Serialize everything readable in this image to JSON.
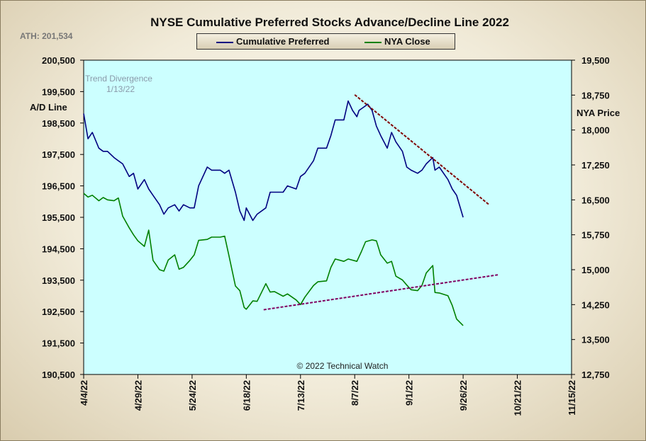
{
  "chart_data": {
    "type": "line",
    "title": "NYSE Cumulative  Preferred Stocks Advance/Decline  Line 2022",
    "ath_note": "ATH: 201,534",
    "left_axis_label": "A/D Line",
    "right_axis_label": "NYA Price",
    "watermark": "© 2022 Technical Watch",
    "annotation": {
      "line1": "Trend  Divergence",
      "line2": "1/13/22"
    },
    "xlim": [
      "2022-04-04",
      "2022-11-15"
    ],
    "x_ticks": [
      "4/4/22",
      "4/29/22",
      "5/24/22",
      "6/18/22",
      "7/13/22",
      "8/7/22",
      "9/1/22",
      "9/26/22",
      "10/21/22",
      "11/15/22"
    ],
    "left_ylim": [
      190500,
      200500
    ],
    "left_ticks": [
      "190,500",
      "191,500",
      "192,500",
      "193,500",
      "194,500",
      "195,500",
      "196,500",
      "197,500",
      "198,500",
      "199,500",
      "200,500"
    ],
    "right_ylim": [
      12750,
      19500
    ],
    "right_ticks": [
      "12,750",
      "13,500",
      "14,250",
      "15,000",
      "15,750",
      "16,500",
      "17,250",
      "18,000",
      "18,750",
      "19,500"
    ],
    "colors": {
      "plot_bg": "#ccffff",
      "ad_line": "#000080",
      "nya_line": "#008000",
      "trend_upper": "#800000",
      "trend_lower": "#800060"
    },
    "series": [
      {
        "name": "Cumulative Preferred",
        "axis": "left",
        "color": "#000080",
        "points": [
          [
            "2022-04-04",
            198800
          ],
          [
            "2022-04-06",
            198000
          ],
          [
            "2022-04-08",
            198200
          ],
          [
            "2022-04-11",
            197700
          ],
          [
            "2022-04-13",
            197600
          ],
          [
            "2022-04-15",
            197600
          ],
          [
            "2022-04-18",
            197400
          ],
          [
            "2022-04-20",
            197300
          ],
          [
            "2022-04-22",
            197200
          ],
          [
            "2022-04-25",
            196800
          ],
          [
            "2022-04-27",
            196900
          ],
          [
            "2022-04-29",
            196400
          ],
          [
            "2022-05-02",
            196700
          ],
          [
            "2022-05-04",
            196400
          ],
          [
            "2022-05-06",
            196200
          ],
          [
            "2022-05-09",
            195900
          ],
          [
            "2022-05-11",
            195600
          ],
          [
            "2022-05-13",
            195800
          ],
          [
            "2022-05-16",
            195900
          ],
          [
            "2022-05-18",
            195700
          ],
          [
            "2022-05-20",
            195900
          ],
          [
            "2022-05-23",
            195800
          ],
          [
            "2022-05-25",
            195800
          ],
          [
            "2022-05-27",
            196500
          ],
          [
            "2022-05-31",
            197100
          ],
          [
            "2022-06-02",
            197000
          ],
          [
            "2022-06-06",
            197000
          ],
          [
            "2022-06-08",
            196900
          ],
          [
            "2022-06-10",
            197000
          ],
          [
            "2022-06-13",
            196300
          ],
          [
            "2022-06-15",
            195700
          ],
          [
            "2022-06-17",
            195400
          ],
          [
            "2022-06-18",
            195800
          ],
          [
            "2022-06-21",
            195400
          ],
          [
            "2022-06-23",
            195600
          ],
          [
            "2022-06-27",
            195800
          ],
          [
            "2022-06-29",
            196300
          ],
          [
            "2022-07-01",
            196300
          ],
          [
            "2022-07-05",
            196300
          ],
          [
            "2022-07-07",
            196500
          ],
          [
            "2022-07-11",
            196400
          ],
          [
            "2022-07-13",
            196800
          ],
          [
            "2022-07-15",
            196900
          ],
          [
            "2022-07-19",
            197300
          ],
          [
            "2022-07-21",
            197700
          ],
          [
            "2022-07-25",
            197700
          ],
          [
            "2022-07-27",
            198100
          ],
          [
            "2022-07-29",
            198600
          ],
          [
            "2022-08-02",
            198600
          ],
          [
            "2022-08-04",
            199200
          ],
          [
            "2022-08-06",
            198900
          ],
          [
            "2022-08-08",
            198700
          ],
          [
            "2022-08-09",
            198900
          ],
          [
            "2022-08-11",
            199000
          ],
          [
            "2022-08-13",
            199100
          ],
          [
            "2022-08-15",
            198900
          ],
          [
            "2022-08-17",
            198400
          ],
          [
            "2022-08-19",
            198100
          ],
          [
            "2022-08-22",
            197700
          ],
          [
            "2022-08-24",
            198200
          ],
          [
            "2022-08-26",
            197900
          ],
          [
            "2022-08-29",
            197600
          ],
          [
            "2022-08-31",
            197100
          ],
          [
            "2022-09-02",
            197000
          ],
          [
            "2022-09-05",
            196900
          ],
          [
            "2022-09-07",
            197000
          ],
          [
            "2022-09-09",
            197200
          ],
          [
            "2022-09-12",
            197400
          ],
          [
            "2022-09-13",
            197000
          ],
          [
            "2022-09-15",
            197100
          ],
          [
            "2022-09-19",
            196700
          ],
          [
            "2022-09-21",
            196400
          ],
          [
            "2022-09-23",
            196200
          ],
          [
            "2022-09-26",
            195500
          ]
        ]
      },
      {
        "name": "NYA Close",
        "axis": "right",
        "color": "#008000",
        "points": [
          [
            "2022-04-04",
            16640
          ],
          [
            "2022-04-06",
            16560
          ],
          [
            "2022-04-08",
            16600
          ],
          [
            "2022-04-11",
            16480
          ],
          [
            "2022-04-13",
            16550
          ],
          [
            "2022-04-15",
            16500
          ],
          [
            "2022-04-18",
            16480
          ],
          [
            "2022-04-20",
            16540
          ],
          [
            "2022-04-22",
            16150
          ],
          [
            "2022-04-25",
            15900
          ],
          [
            "2022-04-27",
            15750
          ],
          [
            "2022-04-29",
            15620
          ],
          [
            "2022-05-02",
            15500
          ],
          [
            "2022-05-04",
            15850
          ],
          [
            "2022-05-06",
            15200
          ],
          [
            "2022-05-09",
            15000
          ],
          [
            "2022-05-11",
            14970
          ],
          [
            "2022-05-13",
            15210
          ],
          [
            "2022-05-16",
            15320
          ],
          [
            "2022-05-18",
            15010
          ],
          [
            "2022-05-20",
            15050
          ],
          [
            "2022-05-23",
            15200
          ],
          [
            "2022-05-25",
            15320
          ],
          [
            "2022-05-27",
            15630
          ],
          [
            "2022-05-31",
            15650
          ],
          [
            "2022-06-02",
            15700
          ],
          [
            "2022-06-06",
            15700
          ],
          [
            "2022-06-08",
            15720
          ],
          [
            "2022-06-10",
            15300
          ],
          [
            "2022-06-13",
            14650
          ],
          [
            "2022-06-15",
            14550
          ],
          [
            "2022-06-17",
            14190
          ],
          [
            "2022-06-18",
            14150
          ],
          [
            "2022-06-21",
            14330
          ],
          [
            "2022-06-23",
            14320
          ],
          [
            "2022-06-27",
            14700
          ],
          [
            "2022-06-29",
            14520
          ],
          [
            "2022-07-01",
            14530
          ],
          [
            "2022-07-05",
            14430
          ],
          [
            "2022-07-07",
            14480
          ],
          [
            "2022-07-11",
            14350
          ],
          [
            "2022-07-13",
            14250
          ],
          [
            "2022-07-15",
            14410
          ],
          [
            "2022-07-19",
            14660
          ],
          [
            "2022-07-21",
            14740
          ],
          [
            "2022-07-25",
            14760
          ],
          [
            "2022-07-27",
            15050
          ],
          [
            "2022-07-29",
            15230
          ],
          [
            "2022-08-02",
            15180
          ],
          [
            "2022-08-04",
            15230
          ],
          [
            "2022-08-08",
            15180
          ],
          [
            "2022-08-10",
            15380
          ],
          [
            "2022-08-12",
            15600
          ],
          [
            "2022-08-15",
            15640
          ],
          [
            "2022-08-17",
            15620
          ],
          [
            "2022-08-19",
            15320
          ],
          [
            "2022-08-22",
            15140
          ],
          [
            "2022-08-24",
            15180
          ],
          [
            "2022-08-26",
            14860
          ],
          [
            "2022-08-29",
            14780
          ],
          [
            "2022-08-31",
            14670
          ],
          [
            "2022-09-02",
            14570
          ],
          [
            "2022-09-05",
            14550
          ],
          [
            "2022-09-07",
            14660
          ],
          [
            "2022-09-09",
            14930
          ],
          [
            "2022-09-12",
            15090
          ],
          [
            "2022-09-13",
            14510
          ],
          [
            "2022-09-15",
            14500
          ],
          [
            "2022-09-19",
            14440
          ],
          [
            "2022-09-21",
            14230
          ],
          [
            "2022-09-23",
            13940
          ],
          [
            "2022-09-26",
            13800
          ]
        ]
      }
    ],
    "trendlines": [
      {
        "axis": "left",
        "color": "#800000",
        "points": [
          [
            "2022-08-07",
            199400
          ],
          [
            "2022-10-08",
            195900
          ]
        ]
      },
      {
        "axis": "right",
        "color": "#800060",
        "points": [
          [
            "2022-06-26",
            14140
          ],
          [
            "2022-10-12",
            14890
          ]
        ]
      }
    ]
  }
}
